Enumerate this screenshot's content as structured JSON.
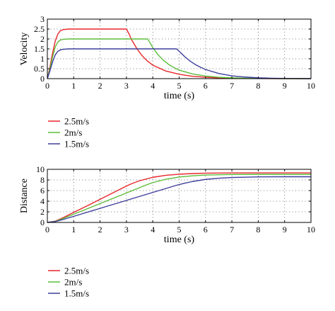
{
  "chart_data": [
    {
      "type": "line",
      "xlabel": "time (s)",
      "ylabel": "Velocity",
      "xlim": [
        0,
        10
      ],
      "ylim": [
        0,
        3
      ],
      "xticks": [
        "0",
        "1",
        "2",
        "3",
        "4",
        "5",
        "6",
        "7",
        "8",
        "9",
        "10"
      ],
      "yticks": [
        "0",
        "0.5",
        "1",
        "1.5",
        "2",
        "2.5",
        "3"
      ],
      "grid": true,
      "legend_position": "below",
      "series": [
        {
          "name": "2.5m/s",
          "color": "#e8262b",
          "x": [
            0,
            0.1,
            0.2,
            0.3,
            0.4,
            0.5,
            0.6,
            0.8,
            1.0,
            2.0,
            3.0,
            3.1,
            3.2,
            3.4,
            3.6,
            3.8,
            4.0,
            4.5,
            5.0,
            5.5,
            6.0,
            6.5,
            7.0,
            7.5,
            8.0,
            9.0,
            10.0
          ],
          "y": [
            0,
            0.6,
            1.3,
            1.9,
            2.25,
            2.42,
            2.47,
            2.5,
            2.5,
            2.5,
            2.5,
            2.25,
            1.95,
            1.5,
            1.15,
            0.88,
            0.68,
            0.38,
            0.22,
            0.12,
            0.07,
            0.04,
            0.02,
            0.01,
            0.005,
            0,
            0
          ]
        },
        {
          "name": "2m/s",
          "color": "#5cbd3a",
          "x": [
            0,
            0.1,
            0.2,
            0.3,
            0.4,
            0.5,
            0.6,
            0.8,
            1.0,
            2.0,
            3.0,
            3.8,
            3.9,
            4.0,
            4.2,
            4.4,
            4.6,
            4.8,
            5.0,
            5.5,
            6.0,
            6.5,
            7.0,
            7.5,
            8.0,
            9.0,
            10.0
          ],
          "y": [
            0,
            0.5,
            1.1,
            1.6,
            1.85,
            1.95,
            1.98,
            2.0,
            2.0,
            2.0,
            2.0,
            2.0,
            1.8,
            1.56,
            1.2,
            0.93,
            0.72,
            0.56,
            0.43,
            0.24,
            0.13,
            0.07,
            0.04,
            0.02,
            0.01,
            0,
            0
          ]
        },
        {
          "name": "1.5m/s",
          "color": "#3d3e9c",
          "x": [
            0,
            0.1,
            0.2,
            0.3,
            0.4,
            0.5,
            0.6,
            0.8,
            1.0,
            2.0,
            3.0,
            4.0,
            4.9,
            5.0,
            5.2,
            5.4,
            5.6,
            5.8,
            6.0,
            6.5,
            7.0,
            7.5,
            8.0,
            8.5,
            9.0,
            10.0
          ],
          "y": [
            0,
            0.4,
            0.85,
            1.2,
            1.38,
            1.45,
            1.48,
            1.5,
            1.5,
            1.5,
            1.5,
            1.5,
            1.5,
            1.38,
            1.12,
            0.9,
            0.72,
            0.58,
            0.46,
            0.26,
            0.14,
            0.08,
            0.04,
            0.02,
            0.01,
            0
          ]
        }
      ]
    },
    {
      "type": "line",
      "xlabel": "time (s)",
      "ylabel": "Distance",
      "xlim": [
        0,
        10
      ],
      "ylim": [
        0,
        10
      ],
      "xticks": [
        "0",
        "1",
        "2",
        "3",
        "4",
        "5",
        "6",
        "7",
        "8",
        "9",
        "10"
      ],
      "yticks": [
        "0",
        "2",
        "4",
        "6",
        "8",
        "10"
      ],
      "grid": true,
      "legend_position": "below",
      "series": [
        {
          "name": "2.5m/s",
          "color": "#e8262b",
          "x": [
            0,
            0.3,
            0.6,
            1,
            1.5,
            2,
            2.5,
            3,
            3.2,
            3.5,
            4,
            4.5,
            5,
            5.5,
            6,
            7,
            8,
            9,
            10
          ],
          "y": [
            0,
            0.25,
            0.9,
            1.9,
            3.1,
            4.35,
            5.6,
            6.85,
            7.3,
            7.85,
            8.5,
            8.88,
            9.08,
            9.2,
            9.27,
            9.32,
            9.33,
            9.33,
            9.33
          ]
        },
        {
          "name": "2m/s",
          "color": "#5cbd3a",
          "x": [
            0,
            0.3,
            0.6,
            1,
            1.5,
            2,
            2.5,
            3,
            3.5,
            3.8,
            4,
            4.5,
            5,
            5.5,
            6,
            7,
            8,
            9,
            10
          ],
          "y": [
            0,
            0.2,
            0.75,
            1.55,
            2.55,
            3.55,
            4.55,
            5.55,
            6.55,
            7.15,
            7.5,
            8.15,
            8.55,
            8.78,
            8.92,
            9.02,
            9.05,
            9.05,
            9.05
          ]
        },
        {
          "name": "1.5m/s",
          "color": "#3d3e9c",
          "x": [
            0,
            0.3,
            0.6,
            1,
            1.5,
            2,
            3,
            4,
            4.9,
            5.2,
            5.5,
            6,
            6.5,
            7,
            8,
            9,
            10
          ],
          "y": [
            0,
            0.15,
            0.55,
            1.15,
            1.9,
            2.65,
            4.15,
            5.65,
            7.0,
            7.38,
            7.7,
            8.1,
            8.33,
            8.46,
            8.58,
            8.6,
            8.6
          ]
        }
      ]
    }
  ]
}
